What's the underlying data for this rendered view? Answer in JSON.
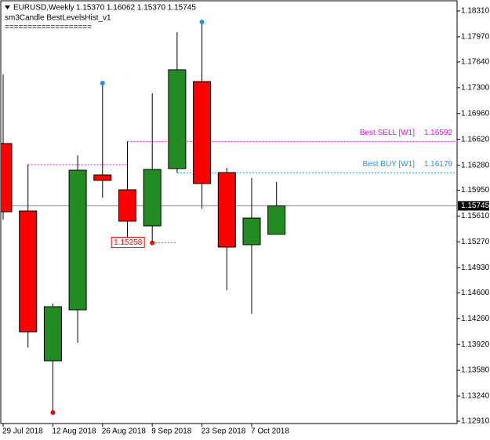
{
  "chart_data": {
    "type": "candlestick",
    "title": "EURUSD,Weekly",
    "info": "1.15370 1.16062 1.15370 1.15745",
    "indicator": "sm3Candle BestLevelsHist_v1",
    "separator": "===================",
    "categories": [
      "29 Jul 2018",
      null,
      "12 Aug 2018",
      null,
      "26 Aug 2018",
      null,
      "9 Sep 2018",
      null,
      "23 Sep 2018",
      null,
      "7 Oct 2018",
      null
    ],
    "open": [
      1.16565,
      1.15677,
      1.13705,
      1.14376,
      1.16152,
      1.15956,
      1.15481,
      1.16235,
      1.17381,
      1.16183,
      1.15233,
      1.1537
    ],
    "high": [
      1.17474,
      1.16286,
      1.14459,
      1.1641,
      1.1736,
      1.16592,
      1.17226,
      1.18031,
      1.18165,
      1.16245,
      1.16111,
      1.16062
    ],
    "low": [
      1.15564,
      1.1388,
      1.13023,
      1.13942,
      1.15853,
      1.1529,
      1.15258,
      1.16179,
      1.15708,
      1.14634,
      1.14324,
      1.1537
    ],
    "close": [
      1.15667,
      1.14087,
      1.14417,
      1.16214,
      1.1608,
      1.15543,
      1.16224,
      1.17536,
      1.16038,
      1.15202,
      1.15584,
      1.15745
    ],
    "up_color": "#228b22",
    "down_color": "#ff0000",
    "high_dots": [
      4,
      8
    ],
    "high_dot_color": "#1e90ff",
    "low_dots": [
      2,
      6
    ],
    "low_dot_color": "#ff0000",
    "last_price": 1.15745,
    "levels": [
      {
        "name": "Best SELL [W1]",
        "color": "#ff00ff",
        "value": 1.16592,
        "from": 5
      },
      {
        "name": "Best BUY [W1]",
        "color": "#1e90ff",
        "value": 1.16179,
        "from": 7
      }
    ],
    "history_levels": [
      {
        "color": "#ff00ff",
        "value": 1.16286,
        "from": 1,
        "to": 5
      },
      {
        "color": "#1e90ff",
        "value": 1.15258,
        "from": 6,
        "to": 7
      }
    ],
    "ylim": [
      1.12879,
      1.18434
    ],
    "yticks": [
      {
        "value": 1.1831,
        "label": "1.18310"
      },
      {
        "value": 1.1797,
        "label": "1.17970"
      },
      {
        "value": 1.1764,
        "label": "1.17640"
      },
      {
        "value": 1.173,
        "label": "1.17300"
      },
      {
        "value": 1.1696,
        "label": "1.16960"
      },
      {
        "value": 1.1662,
        "label": "1.16620"
      },
      {
        "value": 1.1628,
        "label": "1.16280"
      },
      {
        "value": 1.1595,
        "label": "1.15950"
      },
      {
        "value": 1.1561,
        "label": "1.15610"
      },
      {
        "value": 1.1527,
        "label": "1.15270"
      },
      {
        "value": 1.1493,
        "label": "1.14930"
      },
      {
        "value": 1.146,
        "label": "1.14600"
      },
      {
        "value": 1.1426,
        "label": "1.14260"
      },
      {
        "value": 1.1392,
        "label": "1.13920"
      },
      {
        "value": 1.1358,
        "label": "1.13580"
      },
      {
        "value": 1.1324,
        "label": "1.13240"
      },
      {
        "value": 1.1291,
        "label": "1.12910"
      }
    ]
  }
}
